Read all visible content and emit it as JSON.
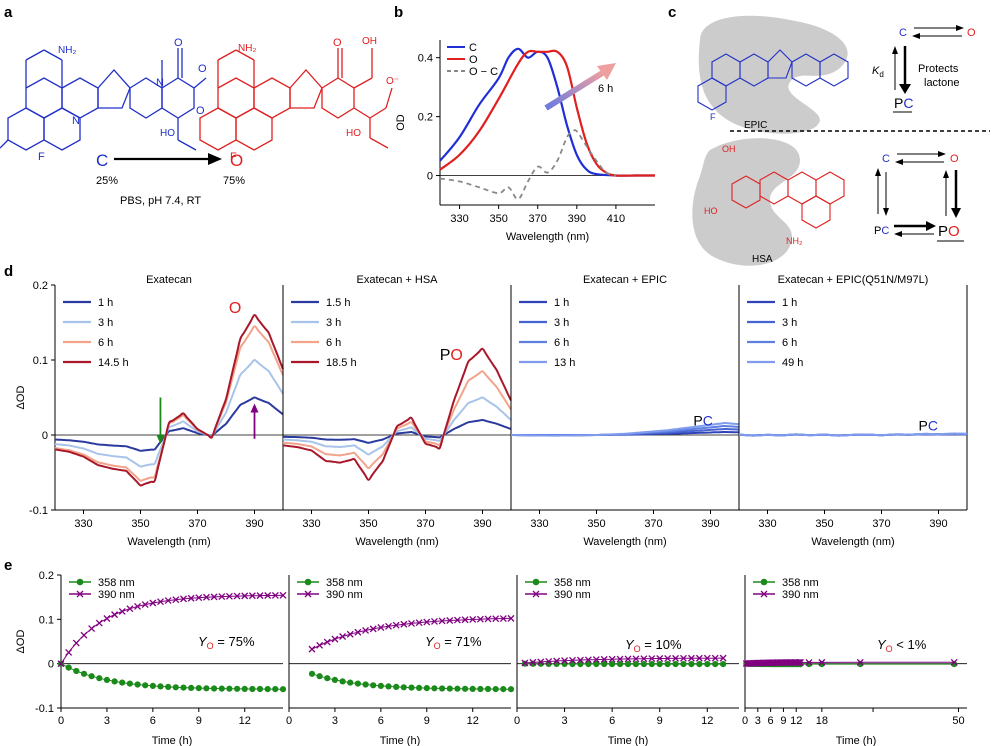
{
  "panel_letters": {
    "a": "a",
    "b": "b",
    "c": "c",
    "d": "d",
    "e": "e"
  },
  "panel_a": {
    "left_sym": "C",
    "right_sym": "O",
    "left_pct": "25%",
    "right_pct": "75%",
    "conditions": "PBS, pH 7.4, RT",
    "nh2": "NH₂",
    "ho": "HO",
    "oh": "OH",
    "f": "F",
    "n": "N",
    "o": "O",
    "o_minus": "O⁻"
  },
  "panel_c": {
    "epic": "EPIC",
    "hsa": "HSA",
    "kd": "K",
    "kd_sub": "d",
    "protects_1": "Protects",
    "protects_2": "lactone",
    "c": "C",
    "o": "O",
    "pc_p": "P",
    "pc_c": "C",
    "po_p": "P",
    "po_o": "O"
  },
  "colors": {
    "closed": "#2030c8",
    "open": "#e02020",
    "green": "#1a8a1a",
    "purple": "#800080"
  },
  "chart_data": [
    {
      "id": "b",
      "type": "line",
      "title": "",
      "xlabel": "Wavelength (nm)",
      "ylabel": "OD",
      "xlim": [
        320,
        430
      ],
      "ylim": [
        -0.1,
        0.46
      ],
      "xticks": [
        330,
        350,
        370,
        390,
        410
      ],
      "yticks": [
        0,
        0.2,
        0.4
      ],
      "arrow_label": "6 h",
      "legend": [
        "C",
        "O",
        "O − C"
      ],
      "series": [
        {
          "name": "C",
          "color": "#1f2ed6",
          "dash": "",
          "x": [
            320,
            330,
            340,
            350,
            355,
            360,
            365,
            370,
            375,
            380,
            385,
            390,
            395,
            400,
            410,
            420,
            430
          ],
          "y": [
            0.05,
            0.13,
            0.24,
            0.33,
            0.4,
            0.43,
            0.4,
            0.42,
            0.4,
            0.3,
            0.17,
            0.07,
            0.02,
            0.005,
            0,
            0,
            0
          ]
        },
        {
          "name": "O",
          "color": "#e01f1f",
          "dash": "",
          "x": [
            320,
            330,
            340,
            350,
            360,
            365,
            370,
            375,
            380,
            385,
            390,
            395,
            400,
            405,
            410,
            420,
            430
          ],
          "y": [
            0.02,
            0.07,
            0.15,
            0.26,
            0.38,
            0.42,
            0.42,
            0.42,
            0.42,
            0.37,
            0.23,
            0.11,
            0.04,
            0.01,
            0,
            0,
            0
          ]
        },
        {
          "name": "O − C",
          "color": "#888888",
          "dash": "5,4",
          "x": [
            320,
            330,
            340,
            350,
            355,
            360,
            365,
            370,
            375,
            380,
            385,
            388,
            390,
            395,
            400,
            405,
            410
          ],
          "y": [
            -0.01,
            -0.02,
            -0.04,
            -0.06,
            -0.04,
            -0.08,
            -0.02,
            0.03,
            0.01,
            0.05,
            0.13,
            0.15,
            0.15,
            0.1,
            0.05,
            0.01,
            0
          ]
        }
      ]
    },
    {
      "id": "d1",
      "type": "line",
      "title": "Exatecan",
      "xlabel": "Wavelength (nm)",
      "ylabel": "ΔOD",
      "xlim": [
        320,
        400
      ],
      "ylim": [
        -0.1,
        0.2
      ],
      "xticks": [
        330,
        350,
        370,
        390
      ],
      "yticks": [
        -0.1,
        0,
        0.1,
        0.2
      ],
      "annotation": "O",
      "shape": [
        -0.12,
        -0.14,
        -0.18,
        -0.25,
        -0.28,
        -0.3,
        -0.42,
        -0.38,
        0.1,
        0.18,
        0.05,
        -0.02,
        0.3,
        0.8,
        1.0,
        0.85,
        0.55
      ],
      "series": [
        {
          "name": "1 h",
          "color": "#2b3a9e",
          "scale": 0.05
        },
        {
          "name": "3 h",
          "color": "#a8c4ea",
          "scale": 0.1
        },
        {
          "name": "6 h",
          "color": "#f2a38a",
          "scale": 0.145
        },
        {
          "name": "14.5 h",
          "color": "#a8182a",
          "scale": 0.16
        }
      ]
    },
    {
      "id": "d2",
      "type": "line",
      "title": "Exatecan + HSA",
      "xlabel": "Wavelength (nm)",
      "ylabel": "",
      "xlim": [
        320,
        400
      ],
      "ylim": [
        -0.1,
        0.2
      ],
      "xticks": [
        330,
        350,
        370,
        390
      ],
      "yticks": [],
      "annotation_p": "P",
      "annotation_o": "O",
      "shape": [
        -0.12,
        -0.14,
        -0.18,
        -0.3,
        -0.32,
        -0.28,
        -0.52,
        -0.3,
        0.1,
        0.2,
        -0.1,
        -0.15,
        0.4,
        0.85,
        1.0,
        0.75,
        0.4
      ],
      "series": [
        {
          "name": "1.5 h",
          "color": "#2b3a9e",
          "scale": 0.02
        },
        {
          "name": "3 h",
          "color": "#a8c4ea",
          "scale": 0.05
        },
        {
          "name": "6 h",
          "color": "#f2a38a",
          "scale": 0.085
        },
        {
          "name": "18.5 h",
          "color": "#a8182a",
          "scale": 0.115
        }
      ]
    },
    {
      "id": "d3",
      "type": "line",
      "title": "Exatecan + EPIC",
      "xlabel": "Wavelength (nm)",
      "ylabel": "",
      "xlim": [
        320,
        400
      ],
      "ylim": [
        -0.1,
        0.2
      ],
      "xticks": [
        330,
        350,
        370,
        390
      ],
      "yticks": [],
      "annotation_p": "P",
      "annotation_c": "C",
      "shape": [
        0,
        -0.02,
        -0.04,
        -0.05,
        -0.04,
        -0.02,
        0,
        0.05,
        0.1,
        0.2,
        0.3,
        0.4,
        0.55,
        0.7,
        0.85,
        1.0,
        0.9
      ],
      "series": [
        {
          "name": "1 h",
          "color": "#2f43b8",
          "scale": 0.004
        },
        {
          "name": "3 h",
          "color": "#4763d2",
          "scale": 0.008
        },
        {
          "name": "6 h",
          "color": "#5f7fe0",
          "scale": 0.012
        },
        {
          "name": "13 h",
          "color": "#7f9cee",
          "scale": 0.016
        }
      ]
    },
    {
      "id": "d4",
      "type": "line",
      "title": "Exatecan + EPIC(Q51N/M97L)",
      "xlabel": "Wavelength (nm)",
      "ylabel": "",
      "xlim": [
        320,
        400
      ],
      "ylim": [
        -0.1,
        0.2
      ],
      "xticks": [
        330,
        350,
        370,
        390
      ],
      "yticks": [],
      "annotation_p": "P",
      "annotation_c": "C",
      "shape": [
        0.2,
        -0.3,
        0.1,
        -0.2,
        0.3,
        -0.1,
        0.2,
        -0.3,
        0.1,
        0.2,
        -0.1,
        0.3,
        0.2,
        0.5,
        0.4,
        0.6,
        0.5
      ],
      "series": [
        {
          "name": "1 h",
          "color": "#2f43b8",
          "scale": 0.002
        },
        {
          "name": "3 h",
          "color": "#4763d2",
          "scale": 0.002
        },
        {
          "name": "6 h",
          "color": "#5f7fe0",
          "scale": 0.003
        },
        {
          "name": "49 h",
          "color": "#7f9cee",
          "scale": 0.003
        }
      ]
    },
    {
      "id": "e1",
      "type": "scatter",
      "xlabel": "Time (h)",
      "ylabel": "ΔOD",
      "xlim": [
        0,
        14.5
      ],
      "ylim": [
        -0.1,
        0.2
      ],
      "xticks": [
        0,
        3,
        6,
        9,
        12
      ],
      "yticks": [
        -0.1,
        0,
        0.1,
        0.2
      ],
      "yo_label": "= 75%",
      "t_start": 0,
      "t_end": 14.5,
      "t_step": 0.5,
      "series": [
        {
          "name": "358 nm",
          "color": "#1a8a1a",
          "marker": "dot",
          "amp": -0.058,
          "tau": 3.0
        },
        {
          "name": "390 nm",
          "color": "#800080",
          "marker": "x",
          "amp": 0.155,
          "tau": 2.8
        }
      ]
    },
    {
      "id": "e2",
      "type": "scatter",
      "xlabel": "Time (h)",
      "ylabel": "",
      "xlim": [
        0,
        14.5
      ],
      "ylim": [
        -0.1,
        0.2
      ],
      "xticks": [
        0,
        3,
        6,
        9,
        12
      ],
      "yticks": [],
      "yo_label": "= 71%",
      "t_start": 1.5,
      "t_end": 14.5,
      "t_step": 0.5,
      "series": [
        {
          "name": "358 nm",
          "color": "#1a8a1a",
          "marker": "dot",
          "amp": -0.058,
          "tau": 3.0
        },
        {
          "name": "390 nm",
          "color": "#800080",
          "marker": "x",
          "amp": 0.105,
          "tau": 4.0
        }
      ]
    },
    {
      "id": "e3",
      "type": "scatter",
      "xlabel": "Time (h)",
      "ylabel": "",
      "xlim": [
        0,
        14
      ],
      "ylim": [
        -0.1,
        0.2
      ],
      "xticks": [
        0,
        3,
        6,
        9,
        12
      ],
      "yticks": [],
      "yo_label": "= 10%",
      "t_start": 0.5,
      "t_end": 13,
      "t_step": 0.5,
      "series": [
        {
          "name": "358 nm",
          "color": "#1a8a1a",
          "marker": "dot",
          "amp": -0.001,
          "tau": 3.0
        },
        {
          "name": "390 nm",
          "color": "#800080",
          "marker": "x",
          "amp": 0.013,
          "tau": 4.0
        }
      ]
    },
    {
      "id": "e4",
      "type": "scatter",
      "xlabel": "Time (h)",
      "ylabel": "",
      "xlim": [
        0,
        52
      ],
      "ylim": [
        -0.1,
        0.2
      ],
      "xticks": [
        0,
        3,
        6,
        9,
        12,
        18,
        30,
        50
      ],
      "xtick_labels": [
        "0",
        "3",
        "6",
        "9",
        "12",
        "18",
        "",
        "50"
      ],
      "yticks": [],
      "yo_label": "< 1%",
      "times": [
        0.3,
        0.6,
        0.9,
        1.2,
        1.5,
        1.8,
        2.1,
        2.4,
        2.7,
        3,
        3.3,
        3.6,
        3.9,
        4.2,
        4.5,
        4.8,
        5.1,
        5.4,
        5.7,
        6,
        6.3,
        6.6,
        6.9,
        7.2,
        7.5,
        7.8,
        8.1,
        8.4,
        8.7,
        9,
        9.3,
        9.6,
        9.9,
        10.2,
        10.5,
        10.8,
        11.1,
        11.4,
        11.7,
        12,
        12.3,
        12.6,
        12.9,
        13,
        15,
        18,
        27,
        49
      ],
      "series": [
        {
          "name": "358 nm",
          "color": "#1a8a1a",
          "marker": "dot",
          "amp": -0.001,
          "tau": 3.0
        },
        {
          "name": "390 nm",
          "color": "#800080",
          "marker": "x",
          "amp": 0.003,
          "tau": 5.0
        }
      ]
    }
  ]
}
